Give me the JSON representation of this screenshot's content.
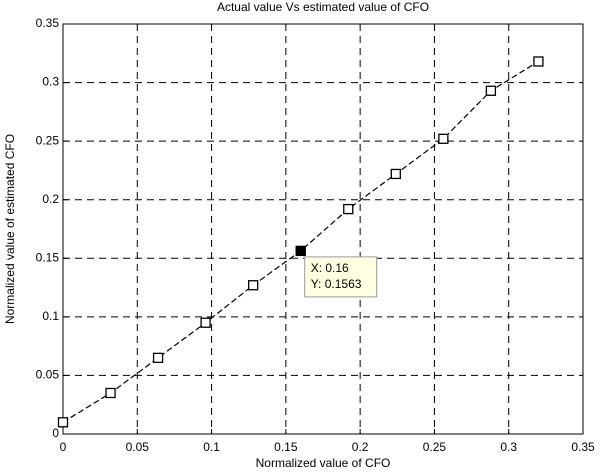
{
  "chart_data": {
    "type": "line",
    "title": "Actual value Vs estimated value of CFO",
    "xlabel": "Normalized value of CFO",
    "ylabel": "Normalized value of estimated CFO",
    "x": [
      0,
      0.032,
      0.064,
      0.096,
      0.128,
      0.16,
      0.192,
      0.224,
      0.256,
      0.288,
      0.32
    ],
    "values": [
      0.01,
      0.035,
      0.065,
      0.095,
      0.127,
      0.1563,
      0.192,
      0.222,
      0.252,
      0.293,
      0.318
    ],
    "color": "#000000",
    "xlim": [
      0,
      0.35
    ],
    "ylim": [
      0,
      0.35
    ],
    "xticks": [
      0,
      0.05,
      0.1,
      0.15,
      0.2,
      0.25,
      0.3,
      0.35
    ],
    "yticks": [
      0,
      0.05,
      0.1,
      0.15,
      0.2,
      0.25,
      0.3,
      0.35
    ],
    "grid": true,
    "datatip": {
      "x": 0.16,
      "y": 0.1563,
      "lines": [
        "X: 0.16",
        "Y: 0.1563"
      ]
    }
  }
}
